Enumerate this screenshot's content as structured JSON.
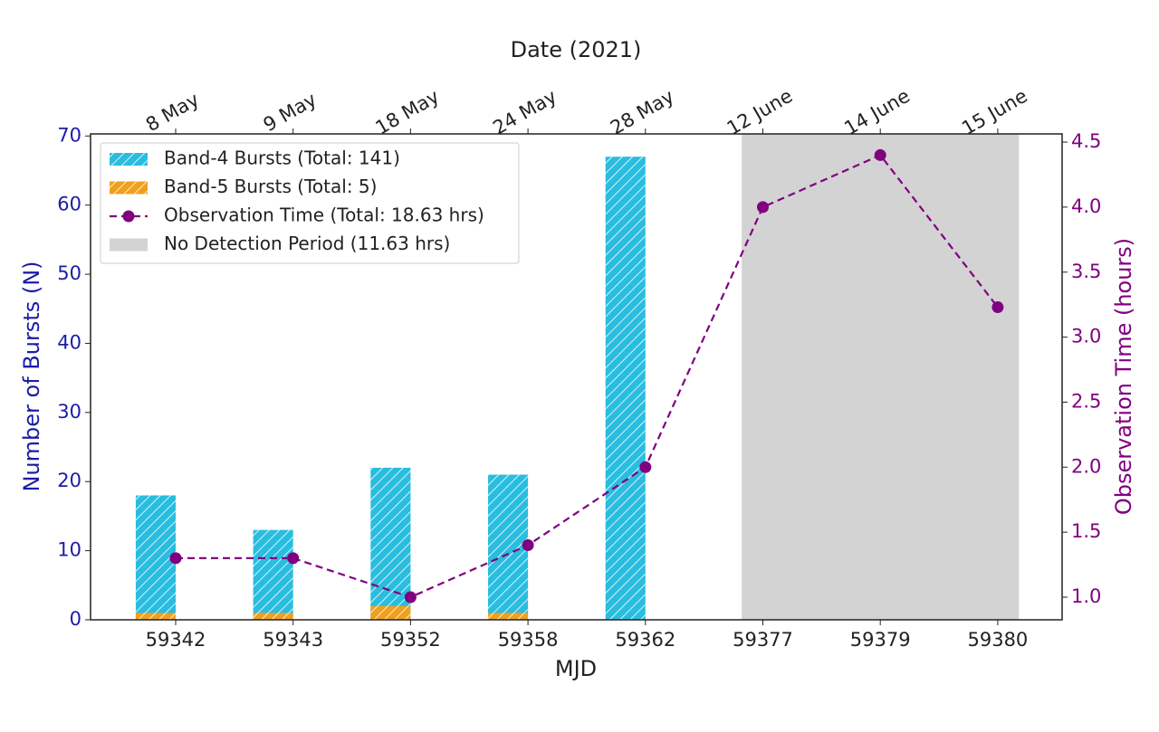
{
  "chart_data": {
    "type": "bar",
    "title": "Date (2021)",
    "x_label": "MJD",
    "y_label": "Number of Bursts (N)",
    "y2_label": "Observation Time (hours)",
    "categories": [
      "59342",
      "59343",
      "59352",
      "59358",
      "59362",
      "59377",
      "59379",
      "59380"
    ],
    "top_categories": [
      "8 May",
      "9 May",
      "18 May",
      "24 May",
      "28 May",
      "12 June",
      "14 June",
      "15 June"
    ],
    "series": [
      {
        "name": "Band-4 Bursts (Total: 141)",
        "type": "bar",
        "color": "#29bde0",
        "hatch": true,
        "values": [
          18,
          13,
          22,
          21,
          67,
          0,
          0,
          0
        ]
      },
      {
        "name": "Band-5 Bursts (Total: 5)",
        "type": "bar",
        "color": "#f0a01e",
        "hatch": true,
        "values": [
          1,
          1,
          2,
          1,
          0,
          0,
          0,
          0
        ]
      },
      {
        "name": "Observation Time (Total: 18.63 hrs)",
        "type": "line",
        "axis": "y2",
        "color": "#800080",
        "dashed": true,
        "values": [
          1.3,
          1.3,
          1.0,
          1.4,
          2.0,
          4.0,
          4.4,
          3.23
        ]
      },
      {
        "name": "No Detection Period (11.63 hrs)",
        "type": "span",
        "color": "#d3d3d3",
        "span": [
          "59377",
          "59380"
        ]
      }
    ],
    "ylim": [
      0,
      70.3
    ],
    "yticks": [
      0,
      10,
      20,
      30,
      40,
      50,
      60,
      70
    ],
    "y2lim": [
      0.826,
      4.563
    ],
    "y2ticks": [
      {
        "value": 1,
        "label": "1.0"
      },
      1.5,
      {
        "value": 2,
        "label": "2.0"
      },
      2.5,
      {
        "value": 3,
        "label": "3.0"
      },
      3.5,
      {
        "value": 4,
        "label": "4.0"
      },
      4.5
    ],
    "y_color": "#1c1ca8",
    "y2_color": "#800080",
    "legend": "upper left"
  }
}
